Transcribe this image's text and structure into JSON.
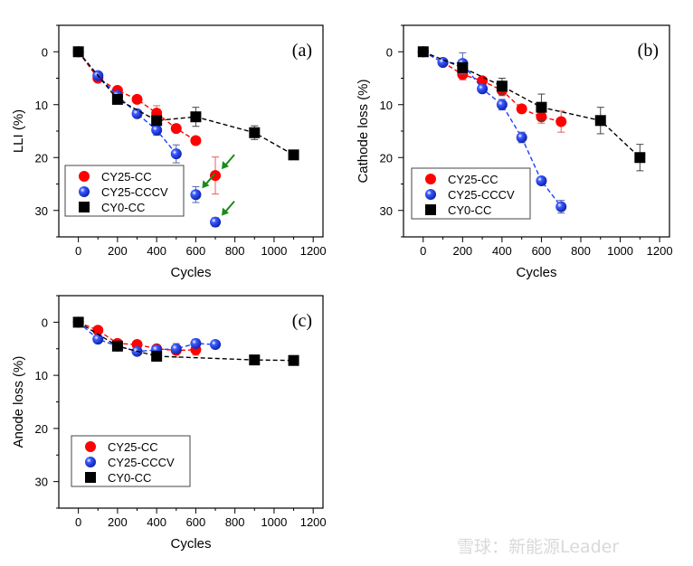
{
  "chart_data": [
    {
      "type": "scatter",
      "panel_label": "(a)",
      "xlabel": "Cycles",
      "ylabel": "LLI (%)",
      "xlim": [
        -100,
        1250
      ],
      "ylim": [
        35,
        -5
      ],
      "y_inverted": true,
      "xticks": [
        0,
        200,
        400,
        600,
        800,
        1000,
        1200
      ],
      "yticks": [
        0,
        10,
        20,
        30
      ],
      "grid": false,
      "legend": "bottom-left",
      "series": [
        {
          "name": "CY25-CC",
          "marker": "circle",
          "color": "#ff0000",
          "x": [
            0,
            100,
            200,
            300,
            400,
            500,
            600,
            700
          ],
          "y": [
            0,
            5,
            7.3,
            9,
            11.6,
            14.5,
            16.8,
            23.4
          ],
          "yerr": [
            0,
            0,
            0,
            0,
            1.4,
            0,
            0,
            3.5
          ],
          "fit_points": 7
        },
        {
          "name": "CY25-CCCV",
          "marker": "sphere",
          "color": "#1f3fff",
          "x": [
            0,
            100,
            200,
            300,
            400,
            500,
            600,
            700
          ],
          "y": [
            0,
            4.5,
            8.3,
            11.7,
            14.8,
            19.3,
            27,
            32.2
          ],
          "yerr": [
            0,
            0,
            0,
            0,
            1,
            1.7,
            1.5,
            0.8
          ],
          "fit_points": 6
        },
        {
          "name": "CY0-CC",
          "marker": "square",
          "color": "#000000",
          "x": [
            0,
            200,
            400,
            600,
            900,
            1100
          ],
          "y": [
            0,
            9,
            13,
            12.3,
            15.3,
            19.5
          ],
          "yerr": [
            0,
            0,
            0,
            1.8,
            1.3,
            0
          ],
          "fit_points": 6
        }
      ],
      "annotations": [
        {
          "type": "arrow",
          "color": "#1a8a1a",
          "target": [
            700,
            23.4
          ]
        },
        {
          "type": "arrow",
          "color": "#1a8a1a",
          "target": [
            600,
            27
          ]
        },
        {
          "type": "arrow",
          "color": "#1a8a1a",
          "target": [
            700,
            32.2
          ]
        }
      ]
    },
    {
      "type": "scatter",
      "panel_label": "(b)",
      "xlabel": "Cycles",
      "ylabel": "Cathode loss (%)",
      "xlim": [
        -100,
        1250
      ],
      "ylim": [
        35,
        -5
      ],
      "y_inverted": true,
      "xticks": [
        0,
        200,
        400,
        600,
        800,
        1000,
        1200
      ],
      "yticks": [
        0,
        10,
        20,
        30
      ],
      "grid": false,
      "legend": "bottom-left",
      "series": [
        {
          "name": "CY25-CC",
          "marker": "circle",
          "color": "#ff0000",
          "x": [
            0,
            100,
            200,
            300,
            400,
            500,
            600,
            700
          ],
          "y": [
            0,
            2,
            4.3,
            5.5,
            7.3,
            10.8,
            12.3,
            13.2
          ],
          "yerr": [
            0,
            0,
            1,
            0,
            1,
            0,
            1.2,
            2
          ],
          "fit_points": 8
        },
        {
          "name": "CY25-CCCV",
          "marker": "sphere",
          "color": "#1f3fff",
          "x": [
            0,
            100,
            200,
            300,
            400,
            500,
            600,
            700
          ],
          "y": [
            0,
            2,
            2.2,
            7,
            10,
            16.2,
            24.4,
            29.3
          ],
          "yerr": [
            0,
            0,
            2,
            0,
            1,
            1,
            0,
            1.2
          ],
          "fit_points": 8
        },
        {
          "name": "CY0-CC",
          "marker": "square",
          "color": "#000000",
          "x": [
            0,
            200,
            400,
            600,
            900,
            1100
          ],
          "y": [
            0,
            3,
            6.5,
            10.5,
            13,
            20
          ],
          "yerr": [
            0,
            0,
            1.5,
            2.5,
            2.5,
            2.5
          ],
          "fit_points": 6
        }
      ]
    },
    {
      "type": "scatter",
      "panel_label": "(c)",
      "xlabel": "Cycles",
      "ylabel": "Anode loss (%)",
      "xlim": [
        -100,
        1250
      ],
      "ylim": [
        35,
        -5
      ],
      "y_inverted": true,
      "xticks": [
        0,
        200,
        400,
        600,
        800,
        1000,
        1200
      ],
      "yticks": [
        0,
        10,
        20,
        30
      ],
      "grid": false,
      "legend": "bottom-left",
      "series": [
        {
          "name": "CY25-CC",
          "marker": "circle",
          "color": "#ff0000",
          "x": [
            0,
            100,
            200,
            300,
            400,
            500,
            600
          ],
          "y": [
            0,
            1.5,
            4,
            4.2,
            5,
            5.3,
            5.2
          ],
          "yerr": [
            0,
            0,
            0,
            0,
            0,
            1.3,
            1
          ],
          "fit_points": 7
        },
        {
          "name": "CY25-CCCV",
          "marker": "sphere",
          "color": "#1f3fff",
          "x": [
            0,
            100,
            200,
            300,
            400,
            500,
            600,
            700
          ],
          "y": [
            0,
            3.2,
            4.5,
            5.5,
            5.2,
            5,
            4,
            4.2
          ],
          "yerr": [
            0,
            0,
            0,
            0.5,
            0,
            0.6,
            0.8,
            0
          ],
          "fit_points": 8
        },
        {
          "name": "CY0-CC",
          "marker": "square",
          "color": "#000000",
          "x": [
            0,
            200,
            400,
            900,
            1100
          ],
          "y": [
            0,
            4.5,
            6.4,
            7.1,
            7.2
          ],
          "yerr": [
            0,
            0,
            0,
            0,
            0
          ],
          "fit_points": 5
        }
      ]
    }
  ],
  "watermark": "雪球：新能源Leader"
}
